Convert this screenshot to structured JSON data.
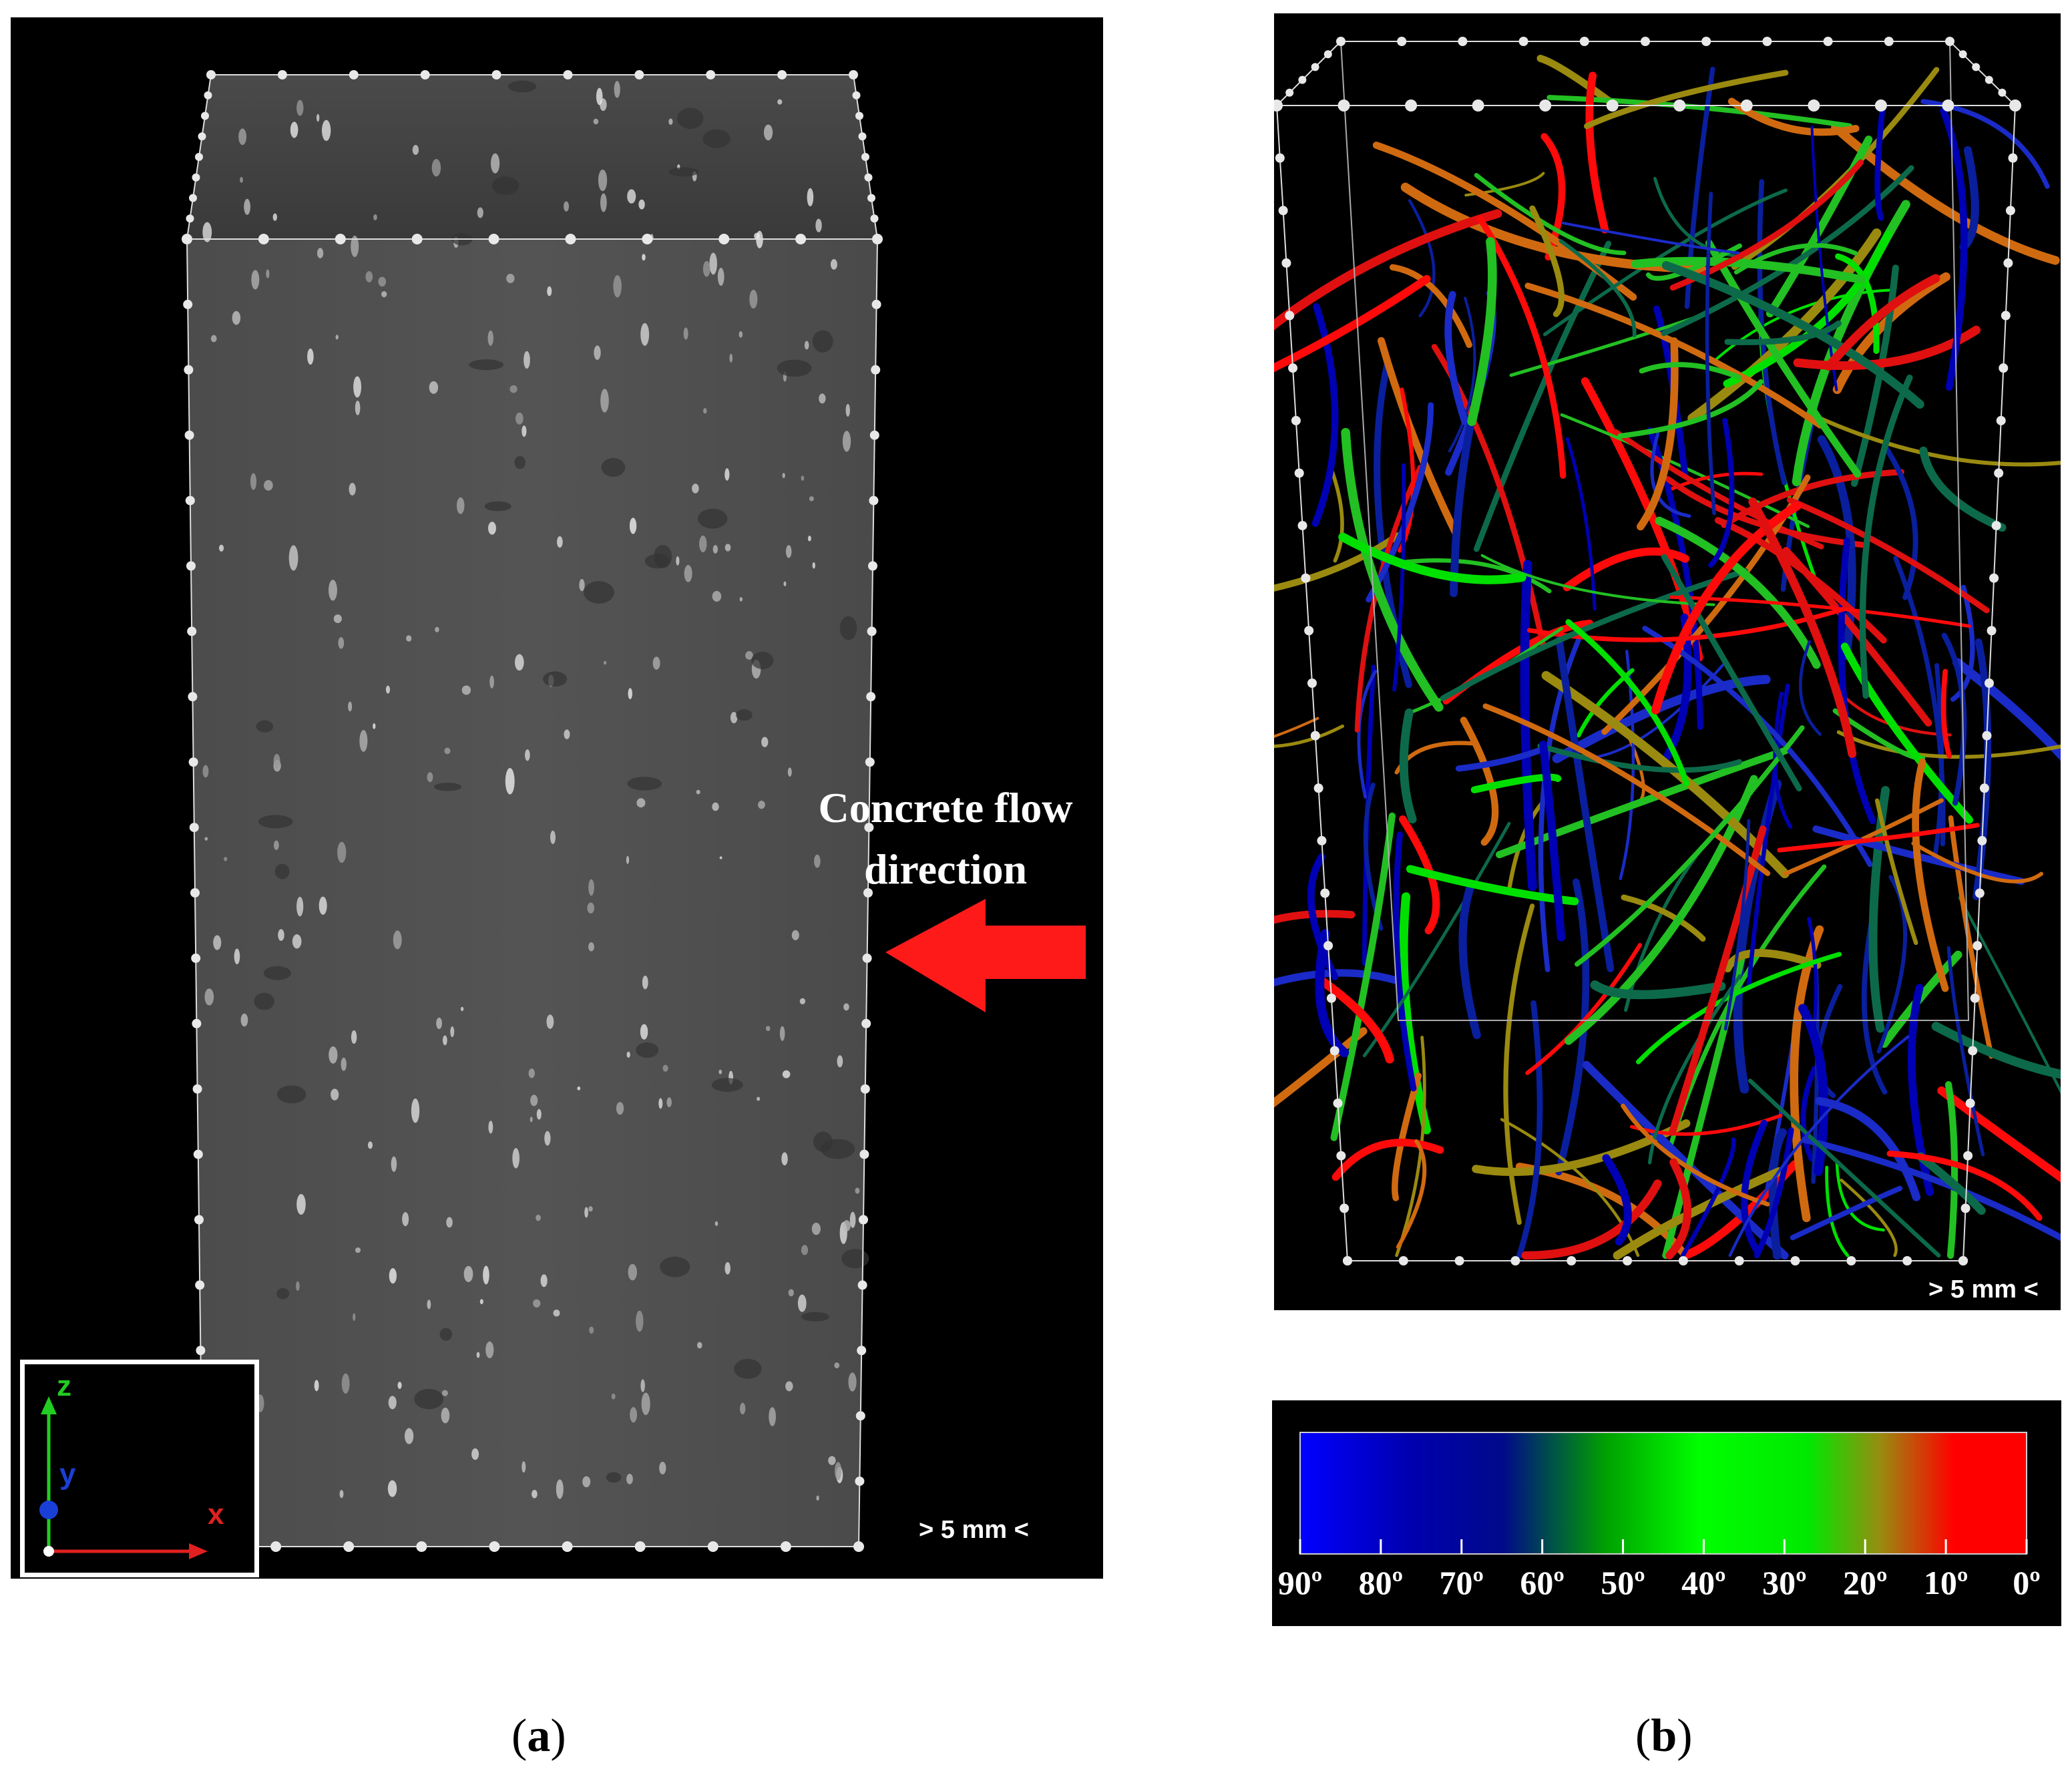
{
  "panel_a": {
    "flow_label_line1": "Concrete flow",
    "flow_label_line2": "direction",
    "scale_label": "> 5 mm <",
    "axes": {
      "z": "z",
      "y": "y",
      "x": "x"
    },
    "colors": {
      "arrow": "#ff1a1a",
      "axis_z": "#22cc22",
      "axis_x": "#e02020",
      "axis_y": "#1a3fd6"
    }
  },
  "panel_b": {
    "scale_label": "> 5 mm <",
    "fiber_colors": [
      "#0000b4",
      "#0a1f9e",
      "#1a2bc8",
      "#00e000",
      "#22c022",
      "#ff0a0a",
      "#e01010",
      "#9a8a10",
      "#0c6a4a",
      "#d06a10"
    ]
  },
  "colorbar": {
    "tick_labels": [
      "90º",
      "80º",
      "70º",
      "60º",
      "50º",
      "40º",
      "30º",
      "20º",
      "10º",
      "0º"
    ],
    "gradient_stops": [
      "#0000ff",
      "#0000b0",
      "#000a8a",
      "#00a000",
      "#00ff00",
      "#00e800",
      "#9a8a10",
      "#ff0000"
    ]
  },
  "captions": {
    "a_open": "(",
    "a_letter": "a",
    "a_close": ")",
    "b_open": "(",
    "b_letter": "b",
    "b_close": ")"
  }
}
